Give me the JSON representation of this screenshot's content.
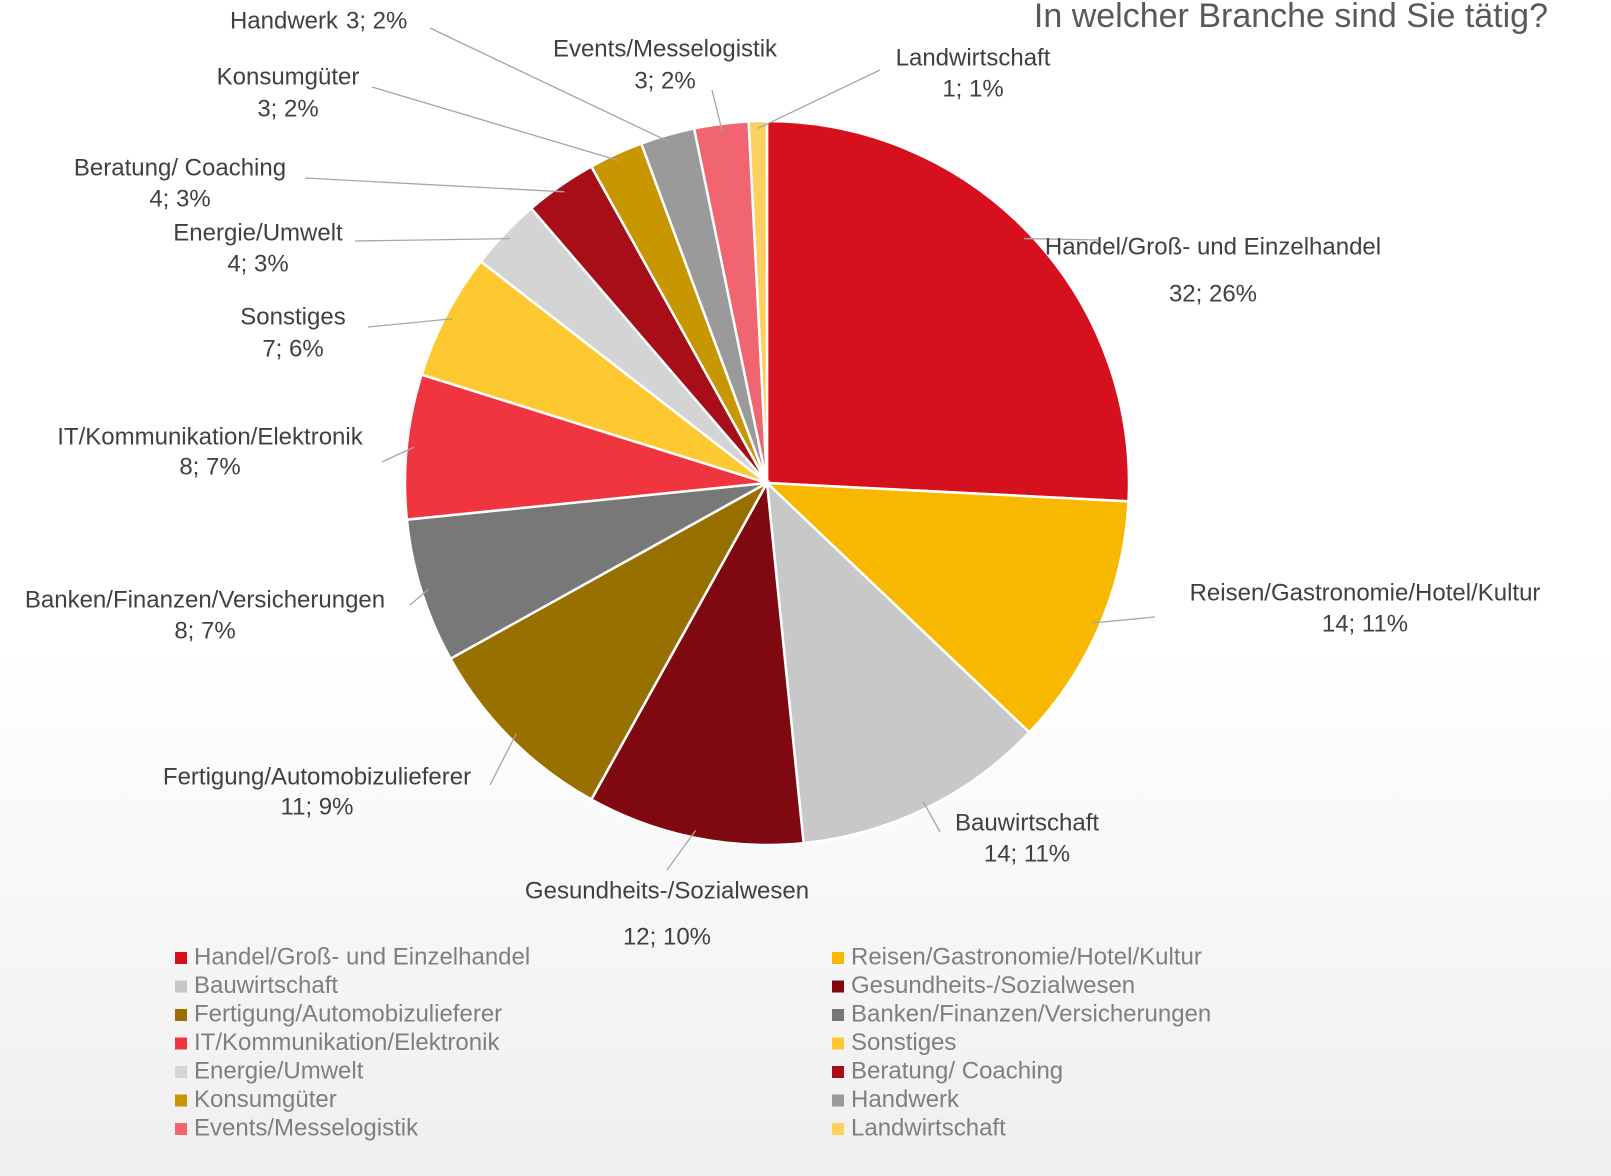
{
  "chart_data": {
    "type": "pie",
    "title": "In welcher Branche sind Sie tätig?",
    "categories": [
      "Handel/Groß- und Einzelhandel",
      "Reisen/Gastronomie/Hotel/Kultur",
      "Bauwirtschaft",
      "Gesundheits-/Sozialwesen",
      "Fertigung/Automobizulieferer",
      "Banken/Finanzen/Versicherungen",
      "IT/Kommunikation/Elektronik",
      "Sonstiges",
      "Energie/Umwelt",
      "Beratung/ Coaching",
      "Konsumgüter",
      "Handwerk",
      "Events/Messelogistik",
      "Landwirtschaft"
    ],
    "values": [
      32,
      14,
      14,
      12,
      11,
      8,
      8,
      7,
      4,
      4,
      3,
      3,
      3,
      1
    ],
    "value_labels": [
      "32; 26%",
      "14; 11%",
      "14; 11%",
      "12; 10%",
      "11; 9%",
      "8; 7%",
      "8; 7%",
      "7; 6%",
      "4; 3%",
      "4; 3%",
      "3; 2%",
      "3; 2%",
      "3; 2%",
      "1; 1%"
    ],
    "colors": [
      "#d7101e",
      "#f9b800",
      "#c8c8c8",
      "#800810",
      "#987000",
      "#787878",
      "#f03440",
      "#fdc830",
      "#d4d4d4",
      "#a80e18",
      "#c89600",
      "#9a9a9a",
      "#f06570",
      "#fdd060"
    ]
  }
}
